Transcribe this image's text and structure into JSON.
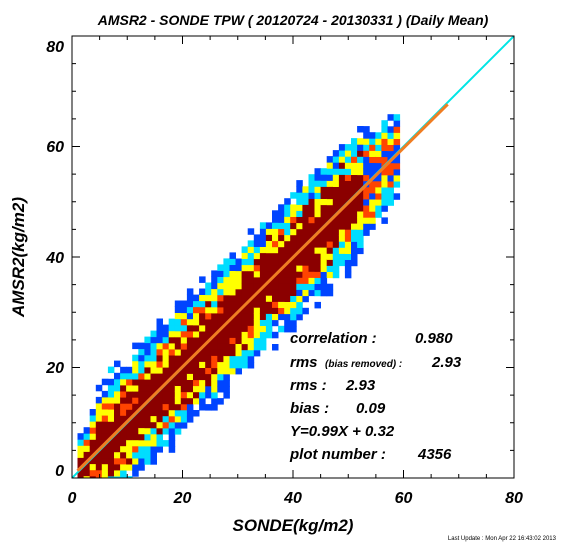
{
  "chart_data": {
    "type": "heatmap",
    "title": "AMSR2 - SONDE TPW ( 20120724 - 20130331 ) (Daily Mean)",
    "xlabel": "SONDE(kg/m2)",
    "ylabel": "AMSR2(kg/m2)",
    "xlim": [
      0,
      80
    ],
    "ylim": [
      0,
      80
    ],
    "xticks": [
      "0",
      "20",
      "40",
      "60",
      "80"
    ],
    "yticks": [
      "0",
      "20",
      "40",
      "60",
      "80"
    ],
    "grid": false,
    "density_colors": [
      "#0044ff",
      "#00ddff",
      "#ffff00",
      "#ff4400",
      "#8b0000"
    ],
    "density_core": {
      "x_range": [
        1,
        59
      ],
      "slope": 0.99,
      "intercept": 0.32,
      "half_widths": [
        3.5,
        7.0,
        9.0,
        11.0,
        12.5
      ]
    },
    "reference_lines": [
      {
        "label": "one-to-one",
        "slope": 1.0,
        "intercept": 0,
        "x_range": [
          0,
          80
        ],
        "color": "#00e5e5"
      },
      {
        "label": "regression fit",
        "slope": 0.99,
        "intercept": 0.32,
        "x_range": [
          1,
          68
        ],
        "color": "#f07d22"
      }
    ]
  },
  "stats": {
    "correlation_label": "correlation :",
    "correlation_value": "0.980",
    "rms_bias_label": "rms",
    "rms_bias_note": "(bias removed) :",
    "rms_bias_value": "2.93",
    "rms_label": "rms :",
    "rms_value": "2.93",
    "bias_label": "bias :",
    "bias_value": "0.09",
    "fit_equation": "Y=0.99X +  0.32",
    "plot_number_label": "plot number :",
    "plot_number_value": "4356"
  },
  "footer": "Last Update : Mon Apr 22 16:43:02 2013"
}
